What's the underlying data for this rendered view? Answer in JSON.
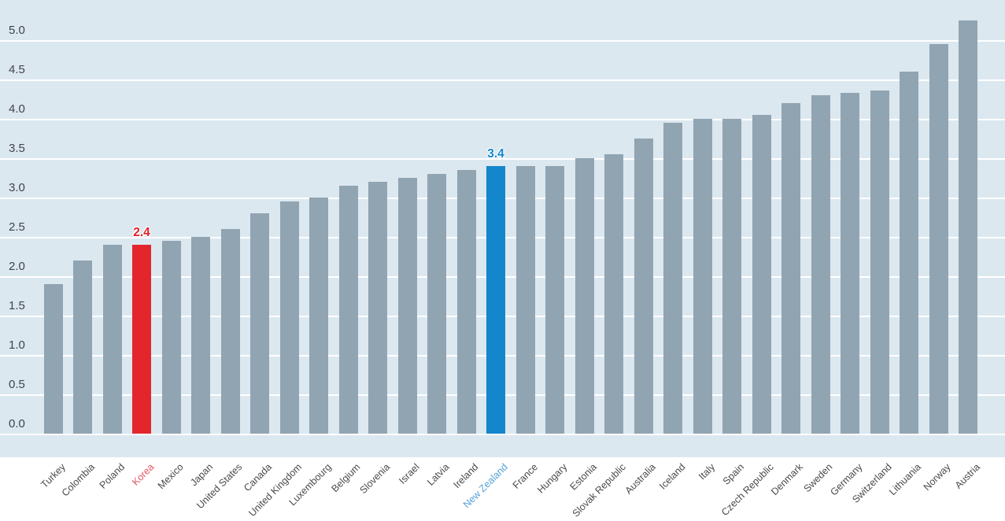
{
  "chart_data": {
    "type": "bar",
    "title": "",
    "subtitle": "",
    "xlabel": "",
    "ylabel": "",
    "categories": [
      "Turkey",
      "Colombia",
      "Poland",
      "Korea",
      "Mexico",
      "Japan",
      "United States",
      "Canada",
      "United Kingdom",
      "Luxembourg",
      "Belgium",
      "Slovenia",
      "Israel",
      "Latvia",
      "Ireland",
      "New Zealand",
      "France",
      "Hungary",
      "Estonia",
      "Slovak Republic",
      "Australia",
      "Iceland",
      "Italy",
      "Spain",
      "Czech Republic",
      "Denmark",
      "Sweden",
      "Germany",
      "Switzerland",
      "Lithuania",
      "Norway",
      "Austria"
    ],
    "values": [
      1.9,
      2.2,
      2.4,
      2.4,
      2.45,
      2.5,
      2.6,
      2.8,
      2.95,
      3.0,
      3.15,
      3.2,
      3.25,
      3.3,
      3.35,
      3.4,
      3.4,
      3.4,
      3.5,
      3.55,
      3.75,
      3.95,
      4.0,
      4.0,
      4.05,
      4.2,
      4.3,
      4.33,
      4.36,
      4.6,
      4.95,
      5.25
    ],
    "sort_order": "ascending",
    "ylim": [
      0,
      5.5
    ],
    "ytick_interval": 0.5,
    "yticks": [
      "0.0",
      "0.5",
      "1.0",
      "1.5",
      "2.0",
      "2.5",
      "3.0",
      "3.5",
      "4.0",
      "4.5",
      "5.0"
    ],
    "grid": "horizontal",
    "legend_position": "none",
    "data_labels_shown_only_for_highlights": true,
    "highlights": [
      {
        "category": "Korea",
        "index": 3,
        "value_label": "2.4",
        "bar_color": "#e3262c",
        "value_label_color": "#e31e28",
        "axis_label_color": "#e25562"
      },
      {
        "category": "New Zealand",
        "index": 15,
        "value_label": "3.4",
        "bar_color": "#1486cb",
        "value_label_color": "#1486cb",
        "axis_label_color": "#54a1d8"
      }
    ],
    "colors": {
      "page_background": "#ffffff",
      "panel_background": "#dce8f0",
      "bar_default": "#91a4b1",
      "gridline": "#ffffff",
      "y_tick_label": "#3f4448",
      "x_tick_label": "#4a4a4a"
    }
  }
}
